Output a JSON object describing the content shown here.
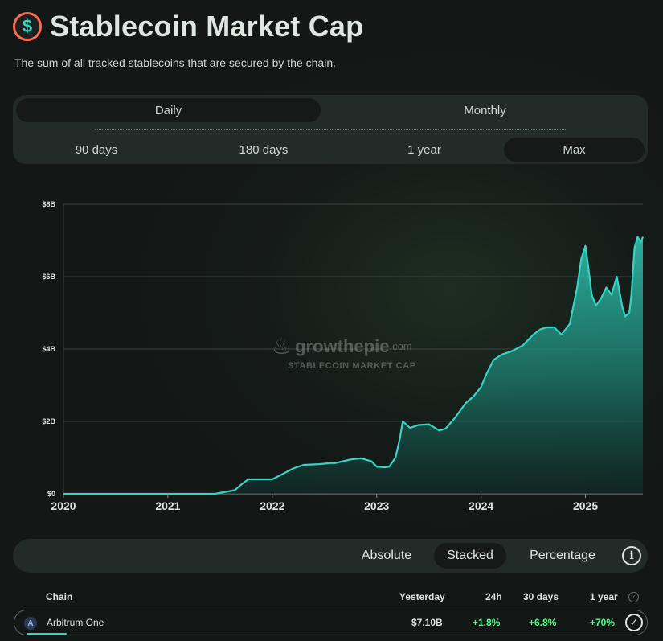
{
  "header": {
    "logo_symbol": "$",
    "title": "Stablecoin Market Cap",
    "subtitle": "The sum of all tracked stablecoins that are secured by the chain."
  },
  "interval_tabs": [
    {
      "label": "Daily",
      "active": true
    },
    {
      "label": "Monthly",
      "active": false
    }
  ],
  "range_tabs": [
    {
      "label": "90 days",
      "active": false
    },
    {
      "label": "180 days",
      "active": false
    },
    {
      "label": "1 year",
      "active": false
    },
    {
      "label": "Max",
      "active": true
    }
  ],
  "watermark": {
    "name": "growthepie",
    "suffix": ".com",
    "caption": "STABLECOIN MARKET CAP"
  },
  "chart_data": {
    "type": "area",
    "title": "Stablecoin Market Cap",
    "xlabel": "",
    "ylabel": "",
    "xlim": [
      2020.0,
      2025.55
    ],
    "ylim": [
      0,
      8
    ],
    "y_unit": "B",
    "y_ticks": [
      0,
      2,
      4,
      6,
      8
    ],
    "y_tick_labels": [
      "$0",
      "$2B",
      "$4B",
      "$6B",
      "$8B"
    ],
    "x_ticks": [
      2020,
      2021,
      2022,
      2023,
      2024,
      2025
    ],
    "x_tick_labels": [
      "2020",
      "2021",
      "2022",
      "2023",
      "2024",
      "2025"
    ],
    "grid": true,
    "series": [
      {
        "name": "Arbitrum One",
        "color": "#36d4c2",
        "x": [
          2020.0,
          2021.45,
          2021.64,
          2021.7,
          2021.77,
          2021.85,
          2022.0,
          2022.1,
          2022.2,
          2022.3,
          2022.45,
          2022.55,
          2022.6,
          2022.75,
          2022.85,
          2022.95,
          2023.0,
          2023.08,
          2023.12,
          2023.18,
          2023.22,
          2023.25,
          2023.32,
          2023.4,
          2023.5,
          2023.6,
          2023.66,
          2023.75,
          2023.85,
          2023.93,
          2024.0,
          2024.05,
          2024.12,
          2024.2,
          2024.3,
          2024.4,
          2024.5,
          2024.57,
          2024.63,
          2024.7,
          2024.77,
          2024.85,
          2024.92,
          2024.96,
          2025.0,
          2025.03,
          2025.06,
          2025.1,
          2025.15,
          2025.2,
          2025.25,
          2025.3,
          2025.35,
          2025.38,
          2025.42,
          2025.44,
          2025.47,
          2025.5,
          2025.53,
          2025.55
        ],
        "values": [
          0,
          0.0,
          0.1,
          0.25,
          0.4,
          0.4,
          0.4,
          0.55,
          0.7,
          0.8,
          0.82,
          0.85,
          0.85,
          0.95,
          0.98,
          0.9,
          0.75,
          0.73,
          0.75,
          1.0,
          1.5,
          2.0,
          1.82,
          1.9,
          1.92,
          1.75,
          1.8,
          2.1,
          2.5,
          2.7,
          2.95,
          3.3,
          3.7,
          3.85,
          3.95,
          4.1,
          4.4,
          4.55,
          4.6,
          4.6,
          4.4,
          4.7,
          5.7,
          6.5,
          6.85,
          6.2,
          5.5,
          5.2,
          5.4,
          5.7,
          5.5,
          6.0,
          5.2,
          4.9,
          5.0,
          5.5,
          6.8,
          7.1,
          6.95,
          7.1
        ]
      }
    ]
  },
  "view_options": [
    {
      "label": "Absolute",
      "active": false
    },
    {
      "label": "Stacked",
      "active": true
    },
    {
      "label": "Percentage",
      "active": false
    }
  ],
  "info_symbol": "i",
  "table": {
    "headers": {
      "chain": "Chain",
      "yesterday": "Yesterday",
      "h24": "24h",
      "d30": "30 days",
      "y1": "1 year"
    },
    "header_check_symbol": "✓",
    "rows": [
      {
        "icon": "arbitrum-icon",
        "icon_letter": "A",
        "chain": "Arbitrum One",
        "yesterday": "$7.10B",
        "h24": "+1.8%",
        "d30": "+6.8%",
        "y1": "+70%",
        "check_symbol": "✓"
      }
    ]
  }
}
